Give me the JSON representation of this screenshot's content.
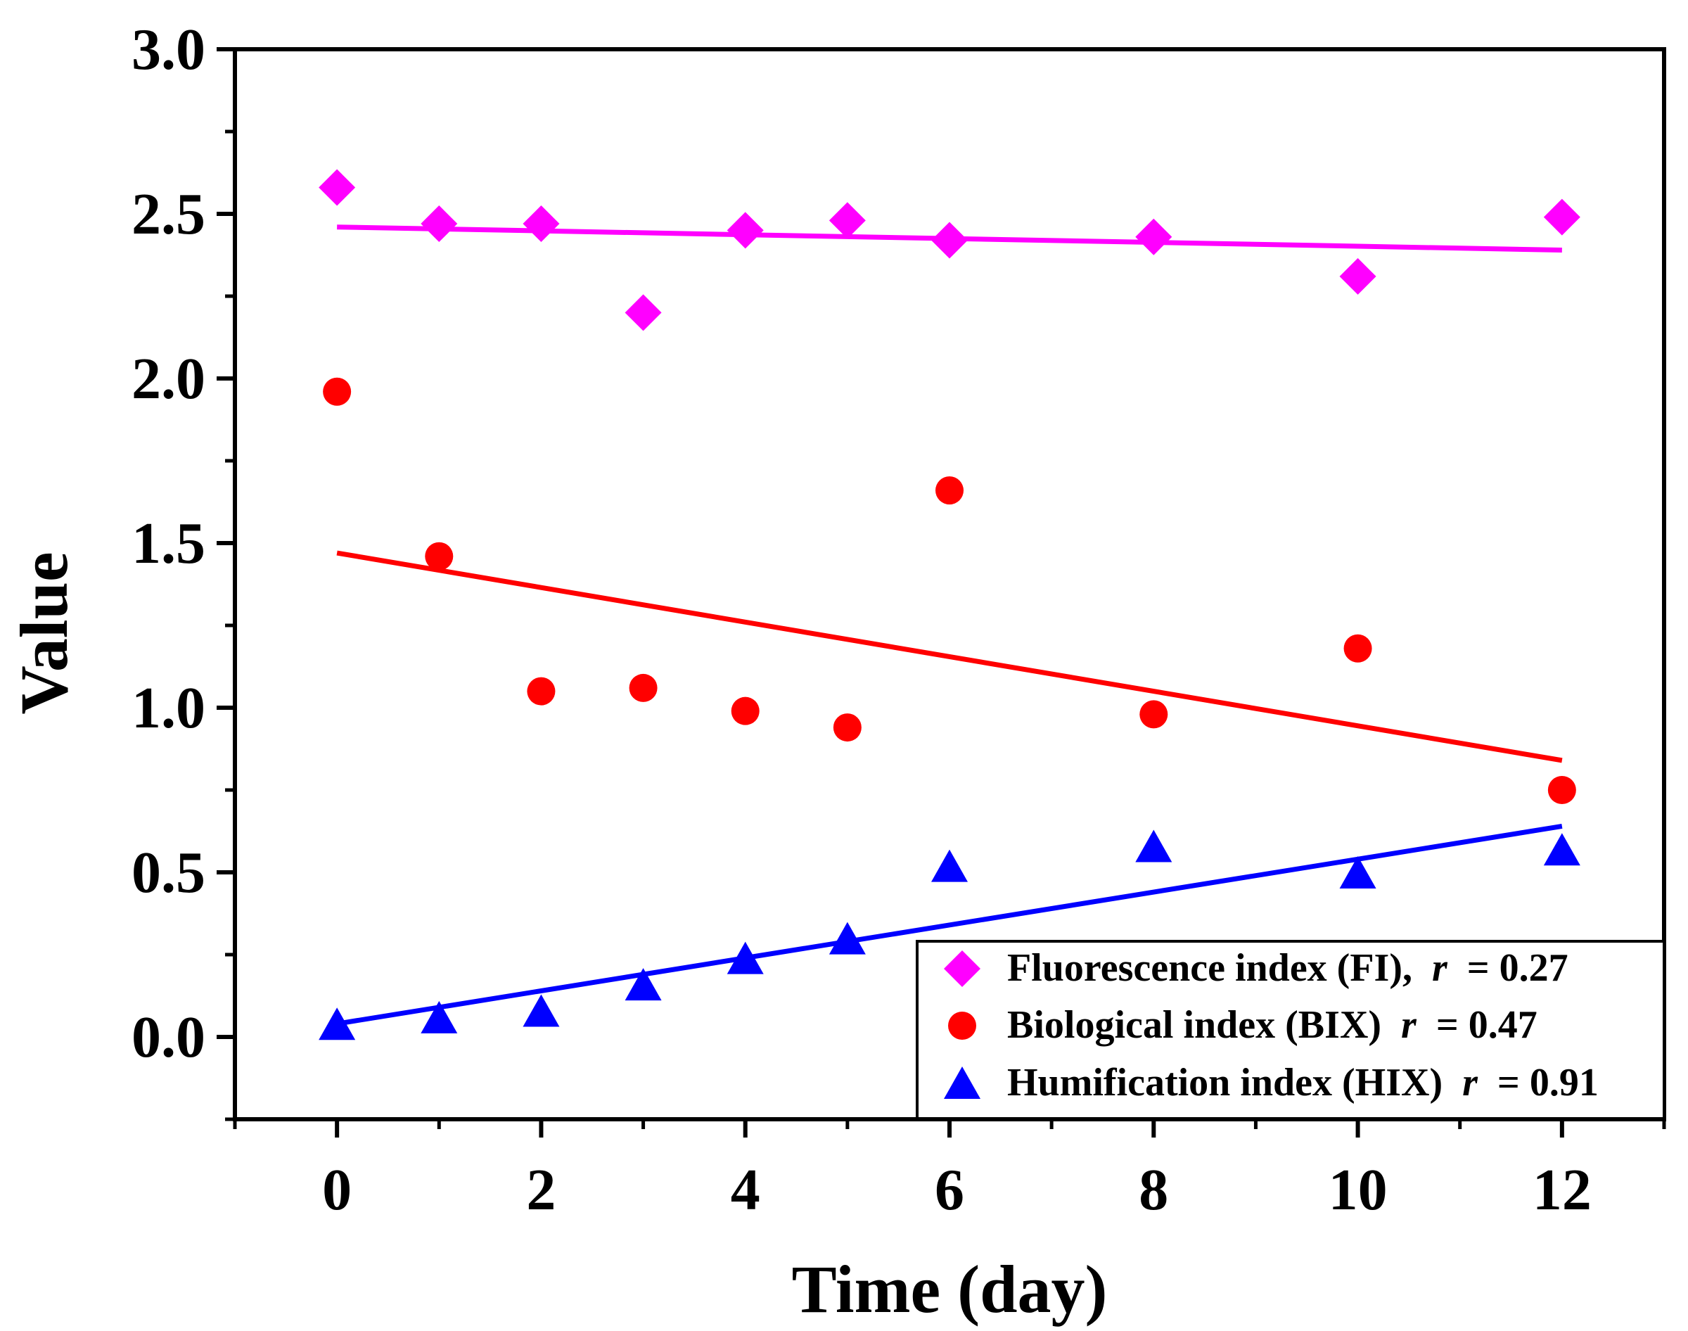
{
  "chart_data": {
    "type": "scatter",
    "xlabel": "Time (day)",
    "ylabel": "Value",
    "xlim": [
      -1,
      13
    ],
    "ylim": [
      -0.25,
      3.0
    ],
    "x_ticks": [
      "0",
      "2",
      "4",
      "6",
      "8",
      "10",
      "12"
    ],
    "y_ticks": [
      "0.0",
      "0.5",
      "1.0",
      "1.5",
      "2.0",
      "2.5",
      "3.0"
    ],
    "x_tick_values": [
      0,
      2,
      4,
      6,
      8,
      10,
      12
    ],
    "y_tick_values": [
      0.0,
      0.5,
      1.0,
      1.5,
      2.0,
      2.5,
      3.0
    ],
    "grid": false,
    "legend_position": "bottom-right",
    "series": [
      {
        "id": "fi",
        "legend_text": "Fluorescence index (FI),",
        "r_label": "r",
        "r_value": " = 0.27",
        "marker": "diamond",
        "color": "#FF00FF",
        "x": [
          0,
          1,
          2,
          3,
          4,
          5,
          6,
          8,
          10,
          12
        ],
        "y": [
          2.58,
          2.47,
          2.47,
          2.2,
          2.45,
          2.48,
          2.42,
          2.43,
          2.31,
          2.49
        ],
        "fit": {
          "x": [
            0,
            12
          ],
          "y": [
            2.46,
            2.39
          ]
        }
      },
      {
        "id": "bix",
        "legend_text": "Biological index (BIX)",
        "r_label": "r",
        "r_value": " = 0.47",
        "marker": "circle",
        "color": "#FF0000",
        "x": [
          0,
          1,
          2,
          3,
          4,
          5,
          6,
          8,
          10,
          12
        ],
        "y": [
          1.96,
          1.46,
          1.05,
          1.06,
          0.99,
          0.94,
          1.66,
          0.98,
          1.18,
          0.75
        ],
        "fit": {
          "x": [
            0,
            12
          ],
          "y": [
            1.47,
            0.84
          ]
        }
      },
      {
        "id": "hix",
        "legend_text": "Humification index (HIX)",
        "r_label": "r",
        "r_value": " = 0.91",
        "marker": "triangle",
        "color": "#0000FF",
        "x": [
          0,
          1,
          2,
          3,
          4,
          5,
          6,
          8,
          10,
          12
        ],
        "y": [
          0.04,
          0.06,
          0.08,
          0.16,
          0.24,
          0.3,
          0.52,
          0.58,
          0.5,
          0.57
        ],
        "fit": {
          "x": [
            0,
            12
          ],
          "y": [
            0.04,
            0.64
          ]
        }
      }
    ]
  }
}
